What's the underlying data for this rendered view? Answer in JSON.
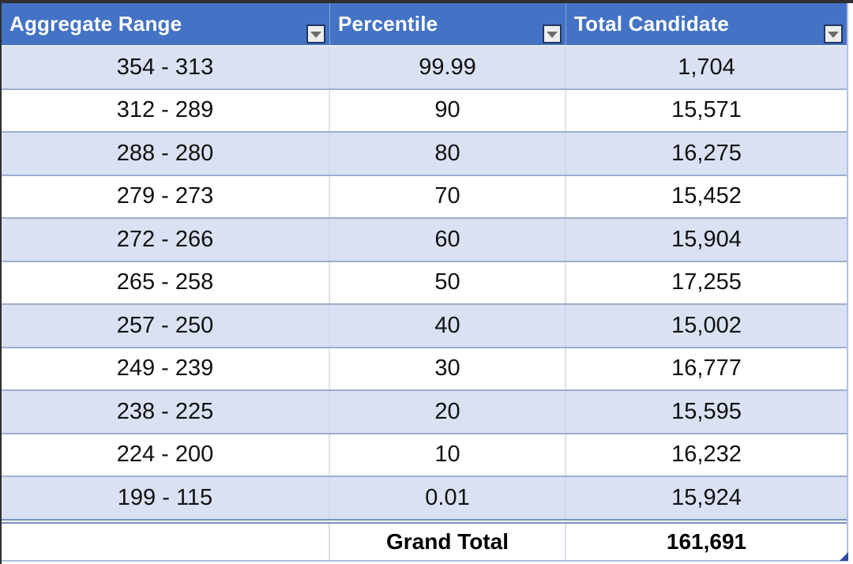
{
  "header": {
    "columns": [
      {
        "label": "Aggregate Range",
        "icon": "filter-dropdown-icon"
      },
      {
        "label": "Percentile",
        "icon": "filter-dropdown-icon"
      },
      {
        "label": "Total Candidate",
        "icon": "filter-dropdown-icon"
      }
    ]
  },
  "rows": [
    {
      "cells": [
        "354 - 313",
        "99.99",
        "1,704"
      ]
    },
    {
      "cells": [
        "312 - 289",
        "90",
        "15,571"
      ]
    },
    {
      "cells": [
        "288 - 280",
        "80",
        "16,275"
      ]
    },
    {
      "cells": [
        "279 - 273",
        "70",
        "15,452"
      ]
    },
    {
      "cells": [
        "272 - 266",
        "60",
        "15,904"
      ]
    },
    {
      "cells": [
        "265 - 258",
        "50",
        "17,255"
      ]
    },
    {
      "cells": [
        "257 - 250",
        "40",
        "15,002"
      ]
    },
    {
      "cells": [
        "249 - 239",
        "30",
        "16,777"
      ]
    },
    {
      "cells": [
        "238 - 225",
        "20",
        "15,595"
      ]
    },
    {
      "cells": [
        "224 - 200",
        "10",
        "16,232"
      ]
    },
    {
      "cells": [
        "199 - 115",
        "0.01",
        "15,924"
      ]
    }
  ],
  "grand_total": {
    "label": "Grand Total",
    "value": "161,691"
  },
  "chart_data": {
    "type": "table",
    "title": "",
    "columns": [
      "Aggregate Range",
      "Percentile",
      "Total Candidate"
    ],
    "rows": [
      [
        "354 - 313",
        99.99,
        1704
      ],
      [
        "312 - 289",
        90,
        15571
      ],
      [
        "288 - 280",
        80,
        16275
      ],
      [
        "279 - 273",
        70,
        15452
      ],
      [
        "272 - 266",
        60,
        15904
      ],
      [
        "265 - 258",
        50,
        17255
      ],
      [
        "257 - 250",
        40,
        15002
      ],
      [
        "249 - 239",
        30,
        16777
      ],
      [
        "238 - 225",
        20,
        15595
      ],
      [
        "224 - 200",
        10,
        16232
      ],
      [
        "199 - 115",
        0.01,
        15924
      ]
    ],
    "grand_total": 161691
  },
  "colors": {
    "header_bg": "#4472C4",
    "header_text": "#FFFFFF",
    "band_row_bg": "#D9E1F2",
    "row_border": "#9DAECD",
    "total_border": "#7790BE",
    "cell_text": "#111111",
    "edge_dark": "#2F2F2F"
  }
}
